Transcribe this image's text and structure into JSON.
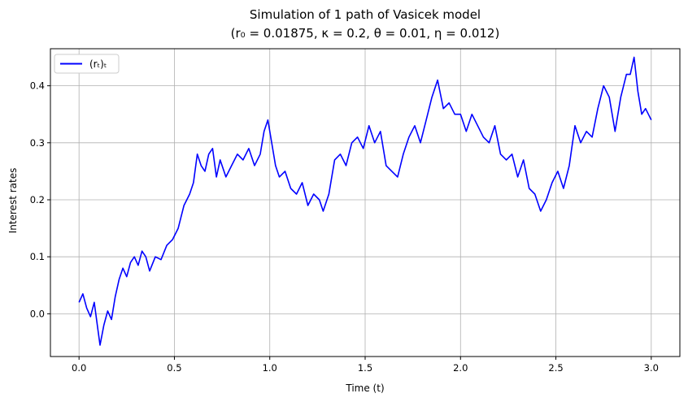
{
  "chart_data": {
    "type": "line",
    "title": "Simulation of 1 path of Vasicek model",
    "subtitle": "(r₀ = 0.01875, κ = 0.2, θ = 0.01, η = 0.012)",
    "xlabel": "Time (t)",
    "ylabel": "Interest rates",
    "xlim": [
      -0.15,
      3.15
    ],
    "ylim": [
      -0.075,
      0.465
    ],
    "xticks": [
      0.0,
      0.5,
      1.0,
      1.5,
      2.0,
      2.5,
      3.0
    ],
    "xtick_labels": [
      "0.0",
      "0.5",
      "1.0",
      "1.5",
      "2.0",
      "2.5",
      "3.0"
    ],
    "yticks": [
      0.0,
      0.1,
      0.2,
      0.3,
      0.4
    ],
    "ytick_labels": [
      "0.0",
      "0.1",
      "0.2",
      "0.3",
      "0.4"
    ],
    "grid": true,
    "legend": {
      "position": "top-left",
      "label": "(rₜ)ₜ"
    },
    "series": [
      {
        "name": "(rₜ)ₜ",
        "color": "#0000ff",
        "x": [
          0.0,
          0.02,
          0.04,
          0.06,
          0.08,
          0.1,
          0.11,
          0.13,
          0.15,
          0.17,
          0.19,
          0.21,
          0.23,
          0.25,
          0.27,
          0.29,
          0.31,
          0.33,
          0.35,
          0.37,
          0.4,
          0.43,
          0.46,
          0.49,
          0.52,
          0.55,
          0.58,
          0.6,
          0.62,
          0.64,
          0.66,
          0.68,
          0.7,
          0.72,
          0.74,
          0.77,
          0.8,
          0.83,
          0.86,
          0.89,
          0.92,
          0.95,
          0.97,
          0.99,
          1.01,
          1.03,
          1.05,
          1.08,
          1.11,
          1.14,
          1.17,
          1.2,
          1.23,
          1.26,
          1.28,
          1.31,
          1.34,
          1.37,
          1.4,
          1.43,
          1.46,
          1.49,
          1.52,
          1.55,
          1.58,
          1.61,
          1.64,
          1.67,
          1.7,
          1.73,
          1.76,
          1.79,
          1.82,
          1.85,
          1.88,
          1.91,
          1.94,
          1.97,
          2.0,
          2.03,
          2.06,
          2.09,
          2.12,
          2.15,
          2.18,
          2.21,
          2.24,
          2.27,
          2.3,
          2.33,
          2.36,
          2.39,
          2.42,
          2.45,
          2.48,
          2.51,
          2.54,
          2.57,
          2.6,
          2.63,
          2.66,
          2.69,
          2.72,
          2.75,
          2.78,
          2.81,
          2.84,
          2.87,
          2.89,
          2.91,
          2.93,
          2.95,
          2.97,
          3.0
        ],
        "values": [
          0.02,
          0.035,
          0.01,
          -0.005,
          0.02,
          -0.03,
          -0.055,
          -0.02,
          0.005,
          -0.01,
          0.03,
          0.06,
          0.08,
          0.065,
          0.09,
          0.1,
          0.085,
          0.11,
          0.1,
          0.075,
          0.1,
          0.095,
          0.12,
          0.13,
          0.15,
          0.19,
          0.21,
          0.23,
          0.28,
          0.26,
          0.25,
          0.28,
          0.29,
          0.24,
          0.27,
          0.24,
          0.26,
          0.28,
          0.27,
          0.29,
          0.26,
          0.28,
          0.32,
          0.34,
          0.3,
          0.26,
          0.24,
          0.25,
          0.22,
          0.21,
          0.23,
          0.19,
          0.21,
          0.2,
          0.18,
          0.21,
          0.27,
          0.28,
          0.26,
          0.3,
          0.31,
          0.29,
          0.33,
          0.3,
          0.32,
          0.26,
          0.25,
          0.24,
          0.28,
          0.31,
          0.33,
          0.3,
          0.34,
          0.38,
          0.41,
          0.36,
          0.37,
          0.35,
          0.35,
          0.32,
          0.35,
          0.33,
          0.31,
          0.3,
          0.33,
          0.28,
          0.27,
          0.28,
          0.24,
          0.27,
          0.22,
          0.21,
          0.18,
          0.2,
          0.23,
          0.25,
          0.22,
          0.26,
          0.33,
          0.3,
          0.32,
          0.31,
          0.36,
          0.4,
          0.38,
          0.32,
          0.38,
          0.42,
          0.42,
          0.45,
          0.39,
          0.35,
          0.36,
          0.34
        ]
      }
    ]
  }
}
